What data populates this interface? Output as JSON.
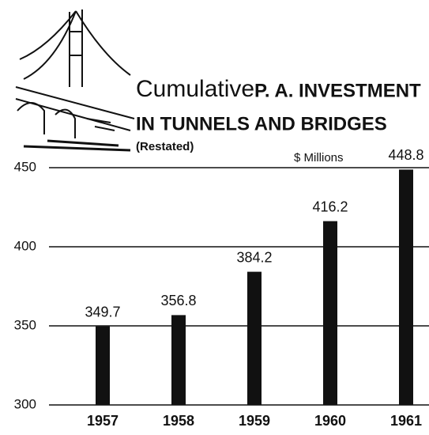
{
  "chart_data": {
    "type": "bar",
    "title": [
      "Cumulative",
      "P. A. INVESTMENT",
      "IN TUNNELS AND BRIDGES"
    ],
    "subtitle": "(Restated)",
    "unit_label": "$ Millions",
    "categories": [
      "1957",
      "1958",
      "1959",
      "1960",
      "1961"
    ],
    "values": [
      349.7,
      356.8,
      384.2,
      416.2,
      448.8
    ],
    "color": "#111111",
    "ylim": [
      300,
      450
    ],
    "yticks": [
      300,
      350,
      400,
      450
    ],
    "grid": true
  }
}
